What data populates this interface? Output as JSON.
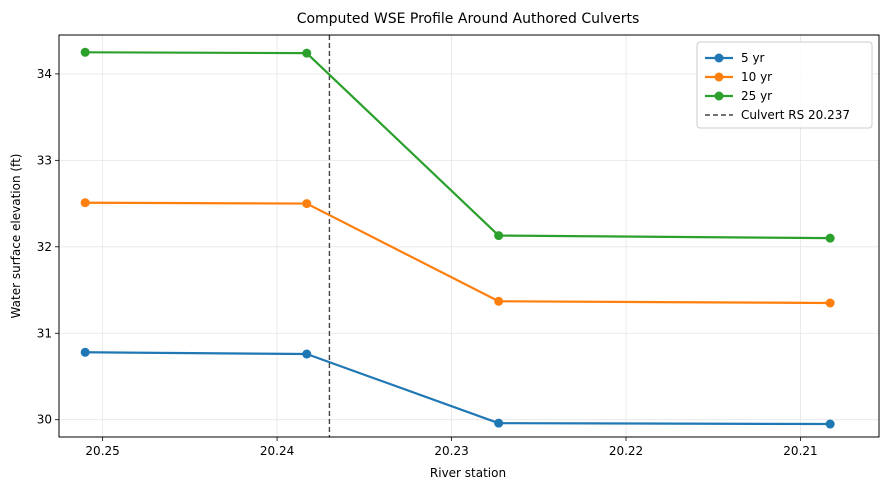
{
  "chart_data": {
    "type": "line",
    "title": "Computed WSE Profile Around Authored Culverts",
    "xlabel": "River station",
    "ylabel": "Water surface elevation (ft)",
    "x_reversed": true,
    "xlim": [
      20.2525,
      20.2055
    ],
    "ylim": [
      29.8,
      34.45
    ],
    "xticks": [
      20.25,
      20.24,
      20.23,
      20.22,
      20.21
    ],
    "xtick_labels": [
      "20.25",
      "20.24",
      "20.23",
      "20.22",
      "20.21"
    ],
    "yticks": [
      30,
      31,
      32,
      33,
      34
    ],
    "ytick_labels": [
      "30",
      "31",
      "32",
      "33",
      "34"
    ],
    "grid": true,
    "legend_position": "top-right",
    "x": [
      20.251,
      20.2383,
      20.2273,
      20.2083
    ],
    "series": [
      {
        "name": "5 yr",
        "color": "#1f77b4",
        "values": [
          30.78,
          30.76,
          29.96,
          29.95
        ]
      },
      {
        "name": "10 yr",
        "color": "#ff7f0e",
        "values": [
          32.51,
          32.5,
          31.37,
          31.35
        ]
      },
      {
        "name": "25 yr",
        "color": "#2ca02c",
        "values": [
          34.25,
          34.24,
          32.13,
          32.1
        ]
      }
    ],
    "reference_lines": [
      {
        "name": "Culvert RS 20.237",
        "x": 20.237,
        "color": "#444444",
        "style": "dashed"
      }
    ]
  }
}
